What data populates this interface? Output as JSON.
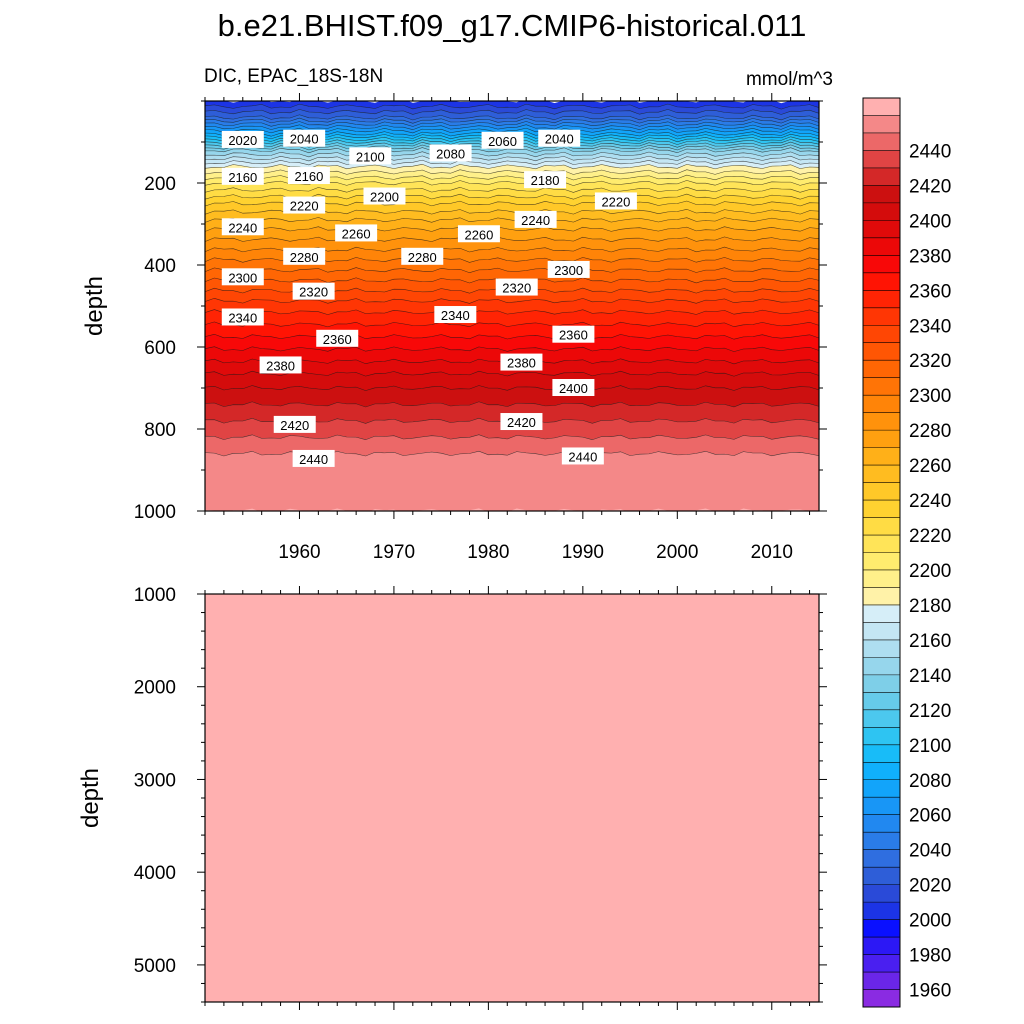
{
  "chart_data": {
    "type": "contour",
    "title": "b.e21.BHIST.f09_g17.CMIP6-historical.011",
    "subtitle_left": "DIC, EPAC_18S-18N",
    "subtitle_right": "mmol/m^3",
    "ylabel": "depth",
    "x_range": [
      1950,
      2015
    ],
    "x_ticks": [
      "1960",
      "1970",
      "1980",
      "1990",
      "2000",
      "2010"
    ],
    "upper_panel": {
      "ylim": [
        0,
        1000
      ],
      "y_ticks": [
        "200",
        "400",
        "600",
        "800",
        "1000"
      ],
      "depth_profile": [
        {
          "depth": 0,
          "value": 2000
        },
        {
          "depth": 40,
          "value": 2030
        },
        {
          "depth": 80,
          "value": 2080
        },
        {
          "depth": 120,
          "value": 2140
        },
        {
          "depth": 160,
          "value": 2180
        },
        {
          "depth": 200,
          "value": 2210
        },
        {
          "depth": 250,
          "value": 2240
        },
        {
          "depth": 300,
          "value": 2265
        },
        {
          "depth": 350,
          "value": 2285
        },
        {
          "depth": 400,
          "value": 2305
        },
        {
          "depth": 450,
          "value": 2325
        },
        {
          "depth": 500,
          "value": 2345
        },
        {
          "depth": 560,
          "value": 2365
        },
        {
          "depth": 620,
          "value": 2385
        },
        {
          "depth": 680,
          "value": 2405
        },
        {
          "depth": 740,
          "value": 2420
        },
        {
          "depth": 800,
          "value": 2435
        },
        {
          "depth": 860,
          "value": 2450
        },
        {
          "depth": 1000,
          "value": 2460
        }
      ],
      "contour_labels": [
        {
          "text": "2020",
          "year": 1954,
          "depth": 95
        },
        {
          "text": "2040",
          "year": 1960.5,
          "depth": 92
        },
        {
          "text": "2100",
          "year": 1967.5,
          "depth": 135
        },
        {
          "text": "2080",
          "year": 1976,
          "depth": 128
        },
        {
          "text": "2060",
          "year": 1981.5,
          "depth": 97
        },
        {
          "text": "2040",
          "year": 1987.5,
          "depth": 92
        },
        {
          "text": "2160",
          "year": 1954,
          "depth": 185
        },
        {
          "text": "2160",
          "year": 1961,
          "depth": 183
        },
        {
          "text": "2180",
          "year": 1986,
          "depth": 193
        },
        {
          "text": "2200",
          "year": 1969,
          "depth": 233
        },
        {
          "text": "2220",
          "year": 1960.5,
          "depth": 255
        },
        {
          "text": "2220",
          "year": 1993.5,
          "depth": 245
        },
        {
          "text": "2240",
          "year": 1954,
          "depth": 308
        },
        {
          "text": "2240",
          "year": 1985,
          "depth": 290
        },
        {
          "text": "2260",
          "year": 1966,
          "depth": 323
        },
        {
          "text": "2260",
          "year": 1979,
          "depth": 325
        },
        {
          "text": "2280",
          "year": 1960.5,
          "depth": 380
        },
        {
          "text": "2280",
          "year": 1973,
          "depth": 380
        },
        {
          "text": "2300",
          "year": 1954,
          "depth": 430
        },
        {
          "text": "2300",
          "year": 1988.5,
          "depth": 412
        },
        {
          "text": "2320",
          "year": 1961.5,
          "depth": 465
        },
        {
          "text": "2320",
          "year": 1983,
          "depth": 455
        },
        {
          "text": "2340",
          "year": 1954,
          "depth": 528
        },
        {
          "text": "2340",
          "year": 1976.5,
          "depth": 522
        },
        {
          "text": "2360",
          "year": 1964,
          "depth": 580
        },
        {
          "text": "2360",
          "year": 1989,
          "depth": 570
        },
        {
          "text": "2380",
          "year": 1958,
          "depth": 645
        },
        {
          "text": "2380",
          "year": 1983.5,
          "depth": 638
        },
        {
          "text": "2400",
          "year": 1989,
          "depth": 700
        },
        {
          "text": "2420",
          "year": 1959.5,
          "depth": 790
        },
        {
          "text": "2420",
          "year": 1983.5,
          "depth": 783
        },
        {
          "text": "2440",
          "year": 1961.5,
          "depth": 873
        },
        {
          "text": "2440",
          "year": 1990,
          "depth": 867
        }
      ]
    },
    "lower_panel": {
      "ylim": [
        1000,
        5400
      ],
      "y_ticks": [
        "1000",
        "2000",
        "3000",
        "4000",
        "5000"
      ],
      "uniform_value": 2460
    },
    "colorbar": {
      "levels": [
        "1960",
        "1980",
        "2000",
        "2020",
        "2040",
        "2060",
        "2080",
        "2100",
        "2120",
        "2140",
        "2160",
        "2180",
        "2200",
        "2220",
        "2240",
        "2260",
        "2280",
        "2300",
        "2320",
        "2340",
        "2360",
        "2380",
        "2400",
        "2420",
        "2440"
      ],
      "level_min": 1950,
      "level_step": 10,
      "colors": [
        "#8a2be2",
        "#6a26e8",
        "#4a1ff0",
        "#2c18f5",
        "#0a10ff",
        "#1c34e6",
        "#2a4ad8",
        "#2e5ed8",
        "#2f6ee0",
        "#2a7ce8",
        "#2188f0",
        "#1896f6",
        "#12a4fa",
        "#10b0fc",
        "#18bcf8",
        "#2ec4f2",
        "#4cc8ee",
        "#66cbea",
        "#7ecfe8",
        "#96d6ec",
        "#aedef0",
        "#c4e6f4",
        "#d6eef8",
        "#fff2a8",
        "#fff08a",
        "#ffec6e",
        "#ffe458",
        "#ffdc44",
        "#ffd230",
        "#ffc828",
        "#ffbc20",
        "#ffb018",
        "#ffa010",
        "#ff920c",
        "#ff8408",
        "#ff7406",
        "#ff6604",
        "#ff5604",
        "#ff4604",
        "#ff3604",
        "#ff2404",
        "#ff1404",
        "#f80808",
        "#ec0808",
        "#e00a0a",
        "#d40c0c",
        "#cc1010",
        "#d42828",
        "#e04444",
        "#ec6868",
        "#f48888",
        "#ffb0b0"
      ]
    }
  }
}
